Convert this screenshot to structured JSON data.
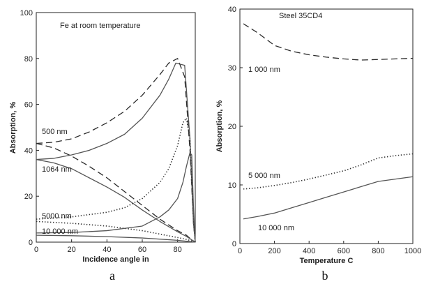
{
  "chart_data": [
    {
      "type": "line",
      "title": "Fe at room temperature",
      "xlabel": "Incidence angle in",
      "ylabel": "Absorption, %",
      "xlim": [
        0,
        90
      ],
      "ylim": [
        0,
        100
      ],
      "xticks": [
        "0",
        "20",
        "40",
        "60",
        "80"
      ],
      "yticks": [
        "0",
        "20",
        "40",
        "60",
        "80",
        "100"
      ],
      "caption": "a",
      "annotations": [
        "500 nm",
        "1064 nm",
        "5000 nm",
        "10 000 nm"
      ],
      "series": [
        {
          "name": "500 nm",
          "style": "dashed",
          "x": [
            0,
            10,
            20,
            30,
            40,
            50,
            60,
            70,
            75,
            80,
            84,
            87,
            89,
            90
          ],
          "y": [
            43,
            43.5,
            45,
            48,
            52,
            57,
            64,
            73,
            78,
            80,
            72,
            40,
            8,
            0
          ]
        },
        {
          "name": "500 nm",
          "style": "dashed",
          "x": [
            0,
            10,
            20,
            30,
            40,
            50,
            60,
            70,
            80,
            85,
            88,
            90
          ],
          "y": [
            43,
            41,
            37.5,
            33,
            28,
            22,
            16,
            10,
            5,
            3,
            1,
            0
          ]
        },
        {
          "name": "1064 nm",
          "style": "solid",
          "x": [
            0,
            10,
            20,
            30,
            40,
            50,
            60,
            70,
            75,
            79,
            84,
            87,
            89,
            90
          ],
          "y": [
            36,
            36.5,
            38,
            40,
            43,
            47,
            54,
            64,
            71,
            78,
            77,
            45,
            8,
            0
          ]
        },
        {
          "name": "1064 nm",
          "style": "solid",
          "x": [
            0,
            10,
            20,
            30,
            40,
            50,
            60,
            70,
            80,
            85,
            88,
            90
          ],
          "y": [
            36,
            34.5,
            32,
            28,
            24,
            19.5,
            14,
            9,
            4.5,
            2.5,
            1,
            0
          ]
        },
        {
          "name": "5000 nm",
          "style": "dotted",
          "x": [
            0,
            20,
            40,
            50,
            60,
            70,
            75,
            80,
            83,
            85,
            87,
            89,
            90
          ],
          "y": [
            10,
            11,
            13,
            15,
            19,
            26,
            32,
            42,
            52,
            54,
            45,
            10,
            0
          ]
        },
        {
          "name": "5000 nm",
          "style": "dotted",
          "x": [
            0,
            20,
            40,
            60,
            70,
            80,
            85,
            88,
            90
          ],
          "y": [
            9,
            8.2,
            7,
            5,
            3.5,
            2,
            1.2,
            0.5,
            0
          ]
        },
        {
          "name": "10 000 nm",
          "style": "solid",
          "x": [
            0,
            20,
            40,
            60,
            70,
            75,
            80,
            83,
            85,
            87,
            88,
            89,
            90
          ],
          "y": [
            4,
            4.2,
            5,
            7,
            11,
            14,
            19,
            26,
            33,
            39,
            38,
            15,
            0
          ]
        },
        {
          "name": "10 000 nm",
          "style": "solid",
          "x": [
            0,
            20,
            40,
            60,
            80,
            90
          ],
          "y": [
            3,
            2.8,
            2.4,
            1.8,
            0.8,
            0
          ]
        }
      ]
    },
    {
      "type": "line",
      "title": "Steel 35CD4",
      "xlabel": "Temperature  C",
      "ylabel": "Absorption, %",
      "xlim": [
        0,
        1000
      ],
      "ylim": [
        0,
        40
      ],
      "xticks": [
        "0",
        "200",
        "400",
        "600",
        "800",
        "1000"
      ],
      "yticks": [
        "0",
        "10",
        "20",
        "30",
        "40"
      ],
      "caption": "b",
      "annotations": [
        "1 000 nm",
        "5 000 nm",
        "10 000 nm"
      ],
      "series": [
        {
          "name": "1 000 nm",
          "style": "dashed",
          "x": [
            20,
            100,
            200,
            300,
            400,
            500,
            600,
            700,
            800,
            900,
            1000
          ],
          "y": [
            37.5,
            36,
            33.8,
            32.8,
            32.2,
            31.8,
            31.5,
            31.3,
            31.4,
            31.5,
            31.6
          ]
        },
        {
          "name": "5 000 nm",
          "style": "dotted",
          "x": [
            20,
            100,
            200,
            300,
            400,
            500,
            600,
            700,
            800,
            900,
            1000
          ],
          "y": [
            9.3,
            9.5,
            9.9,
            10.4,
            11.0,
            11.7,
            12.4,
            13.4,
            14.6,
            15.0,
            15.3
          ]
        },
        {
          "name": "10 000 nm",
          "style": "solid",
          "x": [
            20,
            100,
            200,
            300,
            400,
            500,
            600,
            700,
            800,
            900,
            1000
          ],
          "y": [
            4.2,
            4.6,
            5.2,
            6.1,
            7.0,
            7.9,
            8.8,
            9.7,
            10.6,
            11.0,
            11.4
          ]
        }
      ]
    }
  ]
}
